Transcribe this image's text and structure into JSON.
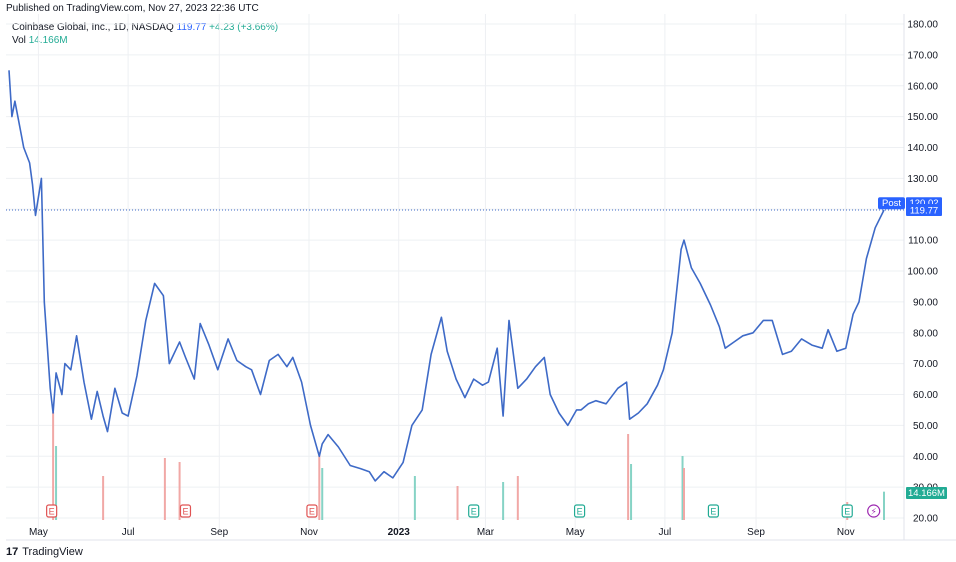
{
  "header": {
    "published": "Published on TradingView.com, Nov 27, 2023 22:36 UTC",
    "symbol": "Coinbase Global, Inc., 1D, NASDAQ",
    "last": "119.77",
    "change": "+4.23 (+3.66%)",
    "vol_label": "Vol",
    "vol_value": "14.166M"
  },
  "footer": {
    "brand_mark": "17",
    "brand": "TradingView"
  },
  "labels": {
    "post": "Post",
    "post_price": "120.02",
    "last_price": "119.77",
    "vol_tag": "14.166M"
  },
  "colors": {
    "line": "#3e6ac7",
    "up_volume": "#86d3c5",
    "down_volume": "#f1a8a6",
    "grid": "#eef0f3",
    "earnings": "#e05353",
    "earnings_green": "#22ab94",
    "dividend": "#9c27b0",
    "post_bg": "#2962ff"
  },
  "chart_data": {
    "type": "line",
    "title": "Coinbase Global, Inc., 1D, NASDAQ",
    "y_axis_ticks": [
      "180.00",
      "170.00",
      "160.00",
      "150.00",
      "140.00",
      "130.00",
      "120.00",
      "110.00",
      "100.00",
      "90.00",
      "80.00",
      "70.00",
      "60.00",
      "50.00",
      "40.00",
      "30.00",
      "20.00"
    ],
    "x_axis_ticks": [
      "May",
      "Jul",
      "Sep",
      "Nov",
      "2023",
      "Mar",
      "May",
      "Jul",
      "Sep",
      "Nov"
    ],
    "price_ylim": [
      20,
      180
    ],
    "grid": true,
    "series": [
      {
        "name": "Price",
        "x": [
          "2022-04-11",
          "2022-04-13",
          "2022-04-15",
          "2022-04-19",
          "2022-04-21",
          "2022-04-25",
          "2022-04-27",
          "2022-04-29",
          "2022-05-03",
          "2022-05-05",
          "2022-05-09",
          "2022-05-11",
          "2022-05-13",
          "2022-05-17",
          "2022-05-19",
          "2022-05-23",
          "2022-05-27",
          "2022-06-01",
          "2022-06-06",
          "2022-06-10",
          "2022-06-14",
          "2022-06-17",
          "2022-06-22",
          "2022-06-27",
          "2022-07-01",
          "2022-07-07",
          "2022-07-13",
          "2022-07-19",
          "2022-07-25",
          "2022-07-29",
          "2022-08-03",
          "2022-08-05",
          "2022-08-09",
          "2022-08-15",
          "2022-08-19",
          "2022-08-25",
          "2022-08-31",
          "2022-09-07",
          "2022-09-13",
          "2022-09-19",
          "2022-09-23",
          "2022-09-29",
          "2022-10-05",
          "2022-10-11",
          "2022-10-17",
          "2022-10-21",
          "2022-10-27",
          "2022-11-02",
          "2022-11-08",
          "2022-11-10",
          "2022-11-14",
          "2022-11-21",
          "2022-11-29",
          "2022-12-06",
          "2022-12-12",
          "2022-12-16",
          "2022-12-22",
          "2022-12-28",
          "2023-01-04",
          "2023-01-10",
          "2023-01-17",
          "2023-01-23",
          "2023-01-30",
          "2023-02-03",
          "2023-02-09",
          "2023-02-15",
          "2023-02-21",
          "2023-02-27",
          "2023-03-03",
          "2023-03-09",
          "2023-03-13",
          "2023-03-17",
          "2023-03-23",
          "2023-03-29",
          "2023-04-04",
          "2023-04-10",
          "2023-04-14",
          "2023-04-20",
          "2023-04-26",
          "2023-05-02",
          "2023-05-05",
          "2023-05-10",
          "2023-05-15",
          "2023-05-22",
          "2023-05-30",
          "2023-06-05",
          "2023-06-07",
          "2023-06-13",
          "2023-06-19",
          "2023-06-26",
          "2023-06-30",
          "2023-07-06",
          "2023-07-12",
          "2023-07-14",
          "2023-07-19",
          "2023-07-25",
          "2023-08-01",
          "2023-08-07",
          "2023-08-11",
          "2023-08-17",
          "2023-08-23",
          "2023-08-30",
          "2023-09-06",
          "2023-09-12",
          "2023-09-19",
          "2023-09-25",
          "2023-10-02",
          "2023-10-09",
          "2023-10-16",
          "2023-10-20",
          "2023-10-26",
          "2023-11-01",
          "2023-11-06",
          "2023-11-10",
          "2023-11-15",
          "2023-11-21",
          "2023-11-27"
        ],
        "y": [
          165,
          150,
          155,
          145,
          140,
          135,
          128,
          118,
          130,
          90,
          62,
          54,
          67,
          60,
          70,
          68,
          79,
          64,
          52,
          61,
          53,
          48,
          62,
          54,
          53,
          66,
          84,
          96,
          92,
          70,
          75,
          77,
          72,
          65,
          83,
          76,
          68,
          78,
          71,
          69,
          68,
          60,
          71,
          73,
          69,
          72,
          64,
          50,
          40,
          44,
          47,
          43,
          37,
          36,
          35,
          32,
          35,
          33,
          38,
          50,
          55,
          73,
          85,
          74,
          65,
          59,
          65,
          63,
          64,
          75,
          53,
          84,
          62,
          65,
          69,
          72,
          60,
          54,
          50,
          55,
          55,
          57,
          58,
          57,
          62,
          64,
          52,
          54,
          57,
          63,
          68,
          80,
          107,
          110,
          101,
          96,
          89,
          82,
          75,
          77,
          79,
          80,
          84,
          84,
          73,
          74,
          78,
          76,
          75,
          81,
          74,
          75,
          86,
          90,
          104,
          114,
          119.77
        ]
      }
    ],
    "volume": [
      {
        "x": "2022-05-11",
        "value": 54,
        "dir": "down"
      },
      {
        "x": "2022-05-13",
        "value": 37,
        "dir": "up"
      },
      {
        "x": "2022-06-14",
        "value": 22,
        "dir": "down"
      },
      {
        "x": "2022-07-26",
        "value": 31,
        "dir": "down"
      },
      {
        "x": "2022-08-05",
        "value": 29,
        "dir": "down"
      },
      {
        "x": "2022-11-08",
        "value": 34,
        "dir": "down"
      },
      {
        "x": "2022-11-10",
        "value": 26,
        "dir": "up"
      },
      {
        "x": "2023-01-12",
        "value": 22,
        "dir": "up"
      },
      {
        "x": "2023-02-10",
        "value": 17,
        "dir": "down"
      },
      {
        "x": "2023-03-13",
        "value": 19,
        "dir": "up"
      },
      {
        "x": "2023-03-23",
        "value": 22,
        "dir": "down"
      },
      {
        "x": "2023-06-06",
        "value": 43,
        "dir": "down"
      },
      {
        "x": "2023-06-08",
        "value": 28,
        "dir": "up"
      },
      {
        "x": "2023-07-13",
        "value": 32,
        "dir": "up"
      },
      {
        "x": "2023-07-14",
        "value": 26,
        "dir": "down"
      },
      {
        "x": "2023-11-02",
        "value": 9,
        "dir": "down"
      },
      {
        "x": "2023-11-27",
        "value": 14.166,
        "dir": "up"
      }
    ],
    "event_markers": [
      {
        "type": "earnings",
        "x": "2022-05-10",
        "label": "E",
        "color": "red"
      },
      {
        "type": "earnings",
        "x": "2022-08-09",
        "label": "E",
        "color": "red"
      },
      {
        "type": "earnings",
        "x": "2022-11-03",
        "label": "E",
        "color": "red"
      },
      {
        "type": "earnings",
        "x": "2023-02-21",
        "label": "E",
        "color": "green"
      },
      {
        "type": "earnings",
        "x": "2023-05-04",
        "label": "E",
        "color": "green"
      },
      {
        "type": "earnings",
        "x": "2023-08-03",
        "label": "E",
        "color": "green"
      },
      {
        "type": "earnings",
        "x": "2023-11-02",
        "label": "E",
        "color": "green"
      },
      {
        "type": "dividend",
        "x": "2023-11-20",
        "label": "⚡",
        "color": "purple"
      }
    ],
    "last_price": 119.77,
    "post_price": 120.02
  }
}
